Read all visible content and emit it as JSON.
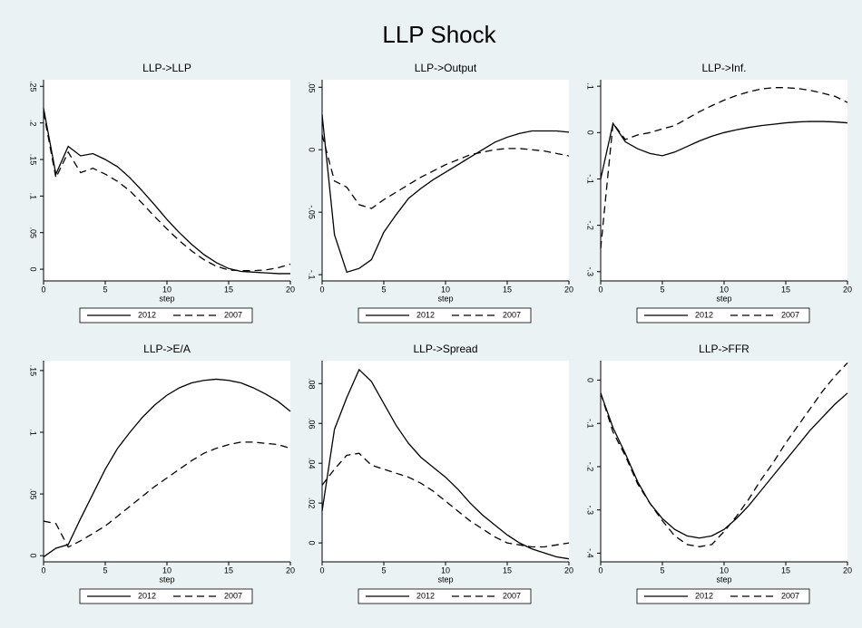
{
  "title": "LLP Shock",
  "chart_data": [
    {
      "type": "line",
      "title": "LLP->LLP",
      "xlabel": "step",
      "x": [
        0,
        1,
        2,
        3,
        4,
        5,
        6,
        7,
        8,
        9,
        10,
        11,
        12,
        13,
        14,
        15,
        16,
        17,
        18,
        19,
        20
      ],
      "series": [
        {
          "name": "2012",
          "color": "#000000",
          "style": "solid",
          "values": [
            0.22,
            0.13,
            0.168,
            0.155,
            0.158,
            0.15,
            0.14,
            0.125,
            0.107,
            0.088,
            0.068,
            0.05,
            0.034,
            0.02,
            0.009,
            0.001,
            -0.003,
            -0.004,
            -0.005,
            -0.006,
            -0.006
          ]
        },
        {
          "name": "2007",
          "color": "#000000",
          "style": "dashed",
          "values": [
            0.215,
            0.125,
            0.16,
            0.132,
            0.138,
            0.13,
            0.12,
            0.107,
            0.09,
            0.072,
            0.055,
            0.039,
            0.025,
            0.013,
            0.004,
            -0.001,
            -0.002,
            -0.002,
            -0.001,
            0.002,
            0.007
          ]
        }
      ],
      "xlim": [
        0,
        20
      ],
      "xticks": [
        0,
        5,
        10,
        15,
        20
      ],
      "ylim": [
        -0.016,
        0.259
      ],
      "yticks": [
        0,
        {
          "value": 0.05,
          "label": ".05"
        },
        {
          "value": 0.1,
          "label": ".1"
        },
        {
          "value": 0.15,
          "label": ".15"
        },
        {
          "value": 0.2,
          "label": ".2"
        },
        {
          "value": 0.25,
          "label": ".25"
        }
      ]
    },
    {
      "type": "line",
      "title": "LLP->Output",
      "xlabel": "step",
      "x": [
        0,
        1,
        2,
        3,
        4,
        5,
        6,
        7,
        8,
        9,
        10,
        11,
        12,
        13,
        14,
        15,
        16,
        17,
        18,
        19,
        20
      ],
      "series": [
        {
          "name": "2012",
          "color": "#000000",
          "style": "solid",
          "values": [
            0.028,
            -0.068,
            -0.098,
            -0.095,
            -0.088,
            -0.066,
            -0.052,
            -0.039,
            -0.031,
            -0.024,
            -0.018,
            -0.012,
            -0.006,
            0.0,
            0.006,
            0.01,
            0.013,
            0.015,
            0.015,
            0.015,
            0.014
          ]
        },
        {
          "name": "2007",
          "color": "#000000",
          "style": "dashed",
          "values": [
            0.012,
            -0.025,
            -0.03,
            -0.044,
            -0.047,
            -0.04,
            -0.034,
            -0.028,
            -0.022,
            -0.017,
            -0.012,
            -0.008,
            -0.004,
            -0.002,
            0.0,
            0.001,
            0.001,
            0.0,
            -0.001,
            -0.003,
            -0.005
          ]
        }
      ],
      "xlim": [
        0,
        20
      ],
      "xticks": [
        0,
        5,
        10,
        15,
        20
      ],
      "ylim": [
        -0.105,
        0.056
      ],
      "yticks": [
        {
          "value": -0.1,
          "label": "-.1"
        },
        {
          "value": -0.05,
          "label": "-.05"
        },
        0,
        {
          "value": 0.05,
          "label": ".05"
        }
      ]
    },
    {
      "type": "line",
      "title": "LLP->Inf.",
      "xlabel": "step",
      "x": [
        0,
        1,
        2,
        3,
        4,
        5,
        6,
        7,
        8,
        9,
        10,
        11,
        12,
        13,
        14,
        15,
        16,
        17,
        18,
        19,
        20
      ],
      "series": [
        {
          "name": "2012",
          "color": "#000000",
          "style": "solid",
          "values": [
            -0.1,
            0.02,
            -0.02,
            -0.035,
            -0.045,
            -0.05,
            -0.042,
            -0.03,
            -0.018,
            -0.008,
            0.0,
            0.006,
            0.011,
            0.015,
            0.018,
            0.021,
            0.023,
            0.024,
            0.024,
            0.023,
            0.021
          ]
        },
        {
          "name": "2007",
          "color": "#000000",
          "style": "dashed",
          "values": [
            -0.25,
            0.02,
            -0.015,
            -0.005,
            0.0,
            0.008,
            0.015,
            0.03,
            0.045,
            0.058,
            0.07,
            0.08,
            0.088,
            0.094,
            0.097,
            0.097,
            0.095,
            0.091,
            0.085,
            0.078,
            0.065
          ]
        }
      ],
      "xlim": [
        0,
        20
      ],
      "xticks": [
        0,
        5,
        10,
        15,
        20
      ],
      "ylim": [
        -0.32,
        0.114
      ],
      "yticks": [
        {
          "value": -0.3,
          "label": "-.3"
        },
        {
          "value": -0.2,
          "label": "-.2"
        },
        {
          "value": -0.1,
          "label": "-.1"
        },
        0,
        {
          "value": 0.1,
          "label": ".1"
        }
      ]
    },
    {
      "type": "line",
      "title": "LLP->E/A",
      "xlabel": "step",
      "x": [
        0,
        1,
        2,
        3,
        4,
        5,
        6,
        7,
        8,
        9,
        10,
        11,
        12,
        13,
        14,
        15,
        16,
        17,
        18,
        19,
        20
      ],
      "series": [
        {
          "name": "2012",
          "color": "#000000",
          "style": "solid",
          "values": [
            -0.001,
            0.006,
            0.009,
            0.03,
            0.05,
            0.07,
            0.087,
            0.1,
            0.112,
            0.122,
            0.13,
            0.136,
            0.14,
            0.142,
            0.143,
            0.142,
            0.14,
            0.136,
            0.131,
            0.125,
            0.117
          ]
        },
        {
          "name": "2007",
          "color": "#000000",
          "style": "dashed",
          "values": [
            0.028,
            0.026,
            0.007,
            0.012,
            0.018,
            0.024,
            0.032,
            0.04,
            0.048,
            0.056,
            0.063,
            0.07,
            0.077,
            0.083,
            0.087,
            0.09,
            0.092,
            0.092,
            0.091,
            0.09,
            0.087
          ]
        }
      ],
      "xlim": [
        0,
        20
      ],
      "xticks": [
        0,
        5,
        10,
        15,
        20
      ],
      "ylim": [
        -0.005,
        0.158
      ],
      "yticks": [
        0,
        {
          "value": 0.05,
          "label": ".05"
        },
        {
          "value": 0.1,
          "label": ".1"
        },
        {
          "value": 0.15,
          "label": ".15"
        }
      ]
    },
    {
      "type": "line",
      "title": "LLP->Spread",
      "xlabel": "step",
      "x": [
        0,
        1,
        2,
        3,
        4,
        5,
        6,
        7,
        8,
        9,
        10,
        11,
        12,
        13,
        14,
        15,
        16,
        17,
        18,
        19,
        20
      ],
      "series": [
        {
          "name": "2012",
          "color": "#000000",
          "style": "solid",
          "values": [
            0.016,
            0.057,
            0.073,
            0.087,
            0.081,
            0.07,
            0.059,
            0.05,
            0.043,
            0.038,
            0.033,
            0.027,
            0.02,
            0.014,
            0.009,
            0.004,
            0.0,
            -0.003,
            -0.005,
            -0.007,
            -0.008
          ]
        },
        {
          "name": "2007",
          "color": "#000000",
          "style": "dashed",
          "values": [
            0.029,
            0.037,
            0.044,
            0.045,
            0.039,
            0.037,
            0.035,
            0.033,
            0.03,
            0.026,
            0.021,
            0.016,
            0.011,
            0.007,
            0.003,
            0.0,
            -0.001,
            -0.002,
            -0.002,
            -0.001,
            0.0
          ]
        }
      ],
      "xlim": [
        0,
        20
      ],
      "xticks": [
        0,
        5,
        10,
        15,
        20
      ],
      "ylim": [
        -0.0095,
        0.0915
      ],
      "yticks": [
        0,
        {
          "value": 0.02,
          "label": ".02"
        },
        {
          "value": 0.04,
          "label": ".04"
        },
        {
          "value": 0.06,
          "label": ".06"
        },
        {
          "value": 0.08,
          "label": ".08"
        }
      ]
    },
    {
      "type": "line",
      "title": "LLP->FFR",
      "xlabel": "step",
      "x": [
        0,
        1,
        2,
        3,
        4,
        5,
        6,
        7,
        8,
        9,
        10,
        11,
        12,
        13,
        14,
        15,
        16,
        17,
        18,
        19,
        20
      ],
      "series": [
        {
          "name": "2012",
          "color": "#000000",
          "style": "solid",
          "values": [
            -0.03,
            -0.11,
            -0.17,
            -0.235,
            -0.285,
            -0.32,
            -0.345,
            -0.36,
            -0.365,
            -0.36,
            -0.345,
            -0.32,
            -0.29,
            -0.255,
            -0.22,
            -0.185,
            -0.15,
            -0.115,
            -0.085,
            -0.055,
            -0.03
          ]
        },
        {
          "name": "2007",
          "color": "#000000",
          "style": "dashed",
          "values": [
            -0.03,
            -0.12,
            -0.175,
            -0.24,
            -0.285,
            -0.325,
            -0.36,
            -0.38,
            -0.385,
            -0.38,
            -0.35,
            -0.315,
            -0.275,
            -0.23,
            -0.19,
            -0.145,
            -0.105,
            -0.065,
            -0.025,
            0.01,
            0.04
          ]
        }
      ],
      "xlim": [
        0,
        20
      ],
      "xticks": [
        0,
        5,
        10,
        15,
        20
      ],
      "ylim": [
        -0.42,
        0.045
      ],
      "yticks": [
        {
          "value": -0.4,
          "label": "-.4"
        },
        {
          "value": -0.3,
          "label": "-.3"
        },
        {
          "value": -0.2,
          "label": "-.2"
        },
        {
          "value": -0.1,
          "label": "-.1"
        },
        0
      ]
    }
  ]
}
